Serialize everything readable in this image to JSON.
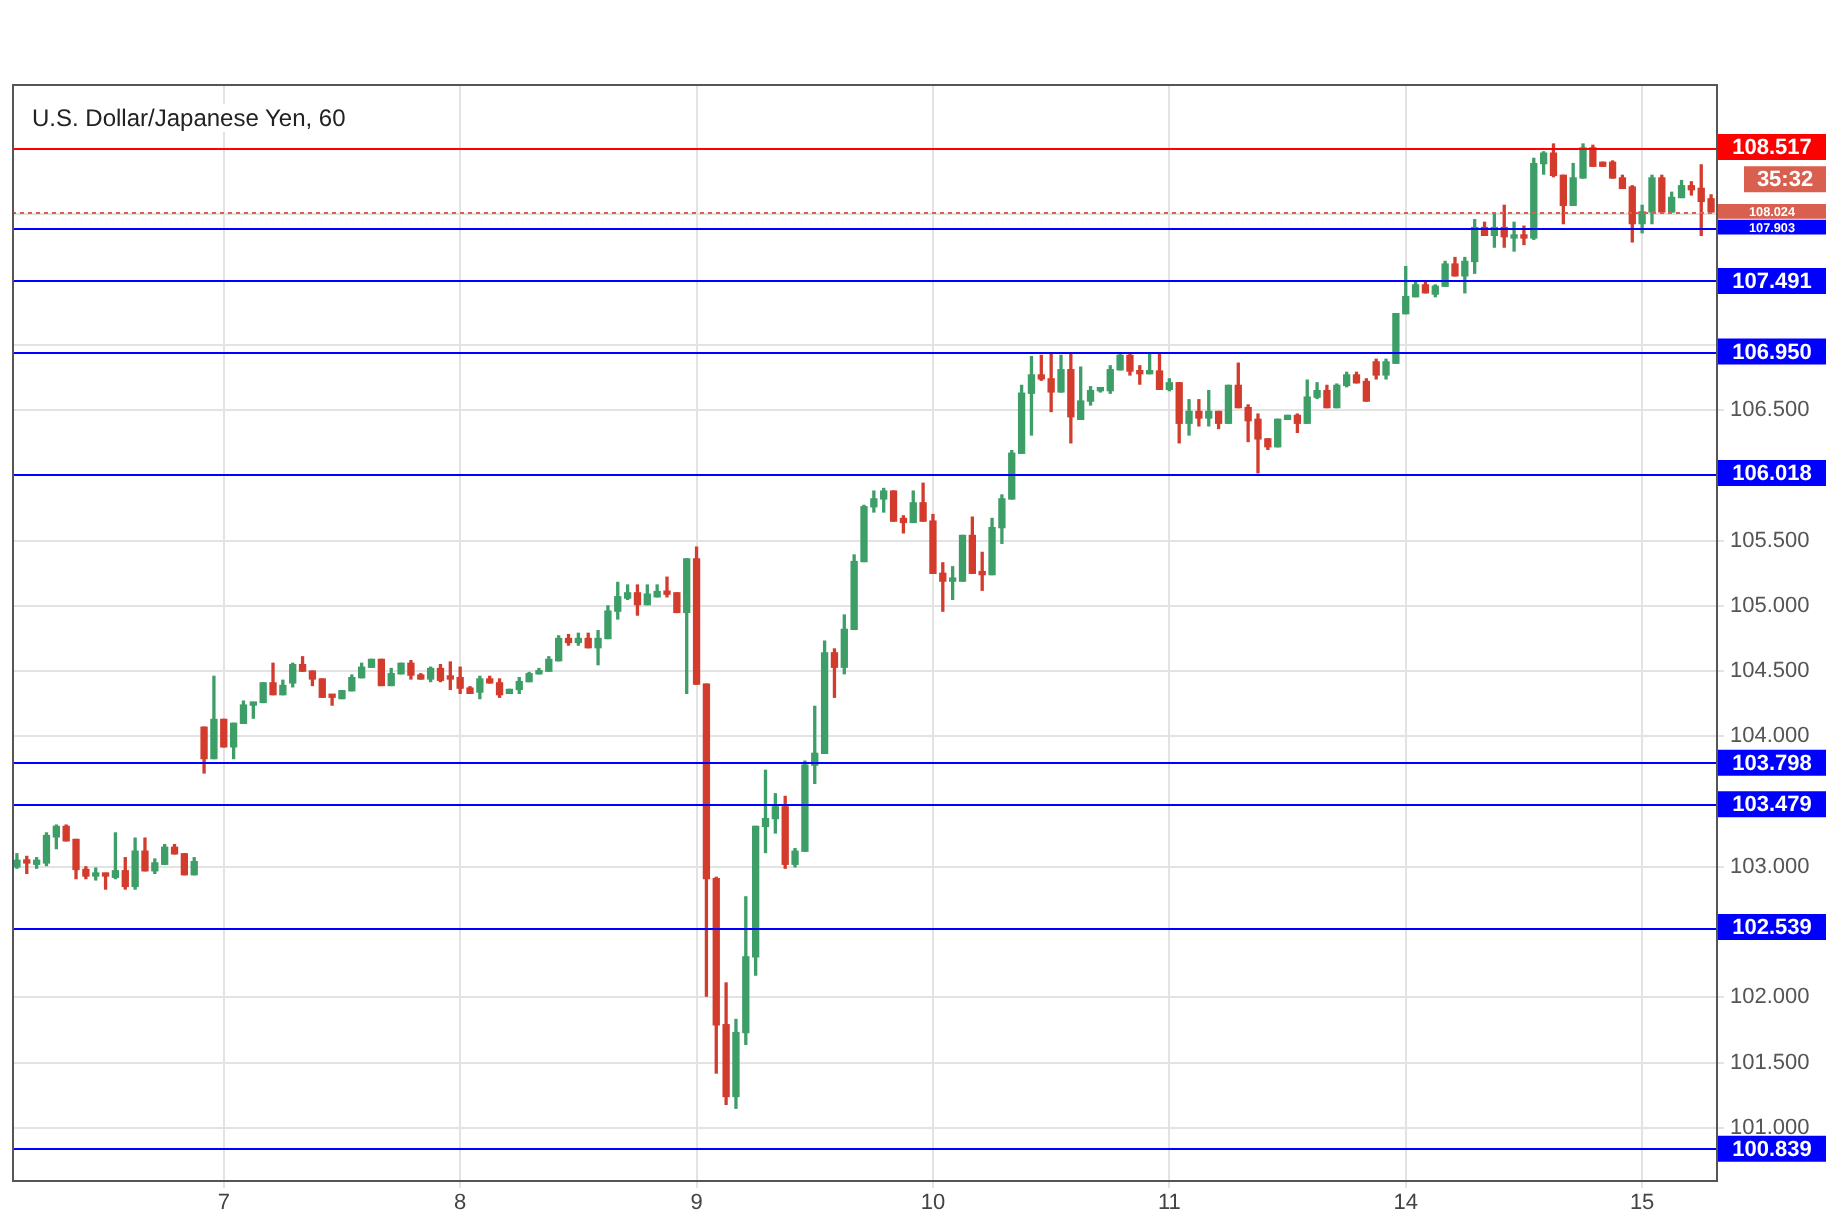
{
  "chart_data": {
    "type": "candlestick",
    "title": "U.S. Dollar/Japanese Yen, 60",
    "categories": [
      null,
      null,
      null,
      null,
      null,
      null,
      null,
      null,
      null,
      null,
      null,
      null,
      null,
      null,
      null,
      null,
      null,
      null,
      null,
      null,
      null,
      "7",
      null,
      null,
      null,
      null,
      null,
      null,
      null,
      null,
      null,
      null,
      null,
      null,
      null,
      null,
      null,
      null,
      null,
      null,
      null,
      null,
      null,
      null,
      null,
      "8",
      null,
      null,
      null,
      null,
      null,
      null,
      null,
      null,
      null,
      null,
      null,
      null,
      null,
      null,
      null,
      null,
      null,
      null,
      null,
      null,
      null,
      null,
      null,
      "9",
      null,
      null,
      null,
      null,
      null,
      null,
      null,
      null,
      null,
      null,
      null,
      null,
      null,
      null,
      null,
      null,
      null,
      null,
      null,
      null,
      null,
      null,
      null,
      "10",
      null,
      null,
      null,
      null,
      null,
      null,
      null,
      null,
      null,
      null,
      null,
      null,
      null,
      null,
      null,
      null,
      null,
      null,
      null,
      null,
      null,
      null,
      null,
      "11",
      null,
      null,
      null,
      null,
      null,
      null,
      null,
      null,
      null,
      null,
      null,
      null,
      null,
      null,
      null,
      null,
      null,
      null,
      null,
      null,
      null,
      null,
      null,
      "14",
      null,
      null,
      null,
      null,
      null,
      null,
      null,
      null,
      null,
      null,
      null,
      null,
      null,
      null,
      null,
      null,
      null,
      null,
      null,
      null,
      null,
      null,
      null,
      "15",
      null,
      null,
      null,
      null,
      null,
      null,
      null
    ],
    "ohlc": [
      [
        103.0,
        103.1,
        102.99,
        103.05
      ],
      [
        103.05,
        103.08,
        102.95,
        103.03
      ],
      [
        103.02,
        103.07,
        102.99,
        103.05
      ],
      [
        103.03,
        103.26,
        103.01,
        103.24
      ],
      [
        103.23,
        103.32,
        103.14,
        103.31
      ],
      [
        103.31,
        103.32,
        103.2,
        103.2
      ],
      [
        103.21,
        103.21,
        102.91,
        102.98
      ],
      [
        102.98,
        103.0,
        102.91,
        102.93
      ],
      [
        102.93,
        102.99,
        102.9,
        102.95
      ],
      [
        102.95,
        102.95,
        102.83,
        102.93
      ],
      [
        102.92,
        103.26,
        102.91,
        102.97
      ],
      [
        102.97,
        103.07,
        102.83,
        102.85
      ],
      [
        102.85,
        103.22,
        102.83,
        103.12
      ],
      [
        103.12,
        103.22,
        102.97,
        102.97
      ],
      [
        102.97,
        103.06,
        102.95,
        103.03
      ],
      [
        103.02,
        103.17,
        103.02,
        103.15
      ],
      [
        103.15,
        103.17,
        103.1,
        103.1
      ],
      [
        103.1,
        103.1,
        102.94,
        102.94
      ],
      [
        102.94,
        103.07,
        102.94,
        103.04
      ],
      [
        104.07,
        104.07,
        103.72,
        103.83
      ],
      [
        103.83,
        104.46,
        103.83,
        104.13
      ],
      [
        104.13,
        104.13,
        103.92,
        103.92
      ],
      [
        103.92,
        104.1,
        103.83,
        104.1
      ],
      [
        104.1,
        104.27,
        104.1,
        104.24
      ],
      [
        104.24,
        104.26,
        104.14,
        104.26
      ],
      [
        104.26,
        104.41,
        104.26,
        104.41
      ],
      [
        104.41,
        104.56,
        104.32,
        104.32
      ],
      [
        104.32,
        104.43,
        104.32,
        104.39
      ],
      [
        104.41,
        104.56,
        104.38,
        104.55
      ],
      [
        104.55,
        104.61,
        104.5,
        104.5
      ],
      [
        104.5,
        104.5,
        104.39,
        104.44
      ],
      [
        104.44,
        104.44,
        104.3,
        104.3
      ],
      [
        104.32,
        104.32,
        104.24,
        104.3
      ],
      [
        104.29,
        104.35,
        104.29,
        104.35
      ],
      [
        104.35,
        104.47,
        104.35,
        104.45
      ],
      [
        104.45,
        104.56,
        104.45,
        104.53
      ],
      [
        104.53,
        104.59,
        104.53,
        104.59
      ],
      [
        104.59,
        104.59,
        104.39,
        104.39
      ],
      [
        104.39,
        104.52,
        104.39,
        104.48
      ],
      [
        104.48,
        104.56,
        104.48,
        104.56
      ],
      [
        104.56,
        104.58,
        104.44,
        104.47
      ],
      [
        104.47,
        104.48,
        104.44,
        104.44
      ],
      [
        104.44,
        104.53,
        104.42,
        104.52
      ],
      [
        104.52,
        104.55,
        104.42,
        104.43
      ],
      [
        104.45,
        104.57,
        104.36,
        104.44
      ],
      [
        104.45,
        104.53,
        104.33,
        104.37
      ],
      [
        104.37,
        104.38,
        104.33,
        104.33
      ],
      [
        104.34,
        104.46,
        104.29,
        104.44
      ],
      [
        104.44,
        104.46,
        104.41,
        104.41
      ],
      [
        104.41,
        104.44,
        104.3,
        104.32
      ],
      [
        104.33,
        104.36,
        104.33,
        104.36
      ],
      [
        104.36,
        104.45,
        104.33,
        104.42
      ],
      [
        104.42,
        104.49,
        104.42,
        104.48
      ],
      [
        104.48,
        104.52,
        104.48,
        104.5
      ],
      [
        104.5,
        104.61,
        104.5,
        104.59
      ],
      [
        104.58,
        104.77,
        104.58,
        104.75
      ],
      [
        104.75,
        104.78,
        104.7,
        104.72
      ],
      [
        104.72,
        104.79,
        104.7,
        104.75
      ],
      [
        104.75,
        104.79,
        104.68,
        104.68
      ],
      [
        104.68,
        104.81,
        104.55,
        104.75
      ],
      [
        104.75,
        105.0,
        104.75,
        104.96
      ],
      [
        104.96,
        105.18,
        104.9,
        105.07
      ],
      [
        105.06,
        105.16,
        105.05,
        105.1
      ],
      [
        105.1,
        105.16,
        104.93,
        105.01
      ],
      [
        105.01,
        105.16,
        105.01,
        105.09
      ],
      [
        105.07,
        105.16,
        105.07,
        105.11
      ],
      [
        105.11,
        105.22,
        105.07,
        105.09
      ],
      [
        105.1,
        105.1,
        104.95,
        104.95
      ],
      [
        104.95,
        105.36,
        104.33,
        105.36
      ],
      [
        105.36,
        105.45,
        104.4,
        104.4
      ],
      [
        104.4,
        104.4,
        102.01,
        102.91
      ],
      [
        102.91,
        102.92,
        101.42,
        101.79
      ],
      [
        101.79,
        102.11,
        101.18,
        101.24
      ],
      [
        101.24,
        101.83,
        101.15,
        101.73
      ],
      [
        101.73,
        102.77,
        101.64,
        102.31
      ],
      [
        102.31,
        103.31,
        102.17,
        103.31
      ],
      [
        103.31,
        103.74,
        103.11,
        103.37
      ],
      [
        103.37,
        103.56,
        103.26,
        103.46
      ],
      [
        103.46,
        103.54,
        102.99,
        103.02
      ],
      [
        103.02,
        103.14,
        103.0,
        103.12
      ],
      [
        103.12,
        103.81,
        103.12,
        103.78
      ],
      [
        103.78,
        104.23,
        103.64,
        103.87
      ],
      [
        103.87,
        104.73,
        103.87,
        104.64
      ],
      [
        104.64,
        104.67,
        104.3,
        104.53
      ],
      [
        104.53,
        104.93,
        104.48,
        104.82
      ],
      [
        104.82,
        105.39,
        104.82,
        105.34
      ],
      [
        105.34,
        105.77,
        105.34,
        105.76
      ],
      [
        105.76,
        105.88,
        105.72,
        105.82
      ],
      [
        105.82,
        105.9,
        105.72,
        105.88
      ],
      [
        105.88,
        105.88,
        105.65,
        105.65
      ],
      [
        105.67,
        105.69,
        105.56,
        105.64
      ],
      [
        105.64,
        105.88,
        105.64,
        105.79
      ],
      [
        105.79,
        105.94,
        105.65,
        105.65
      ],
      [
        105.65,
        105.7,
        105.25,
        105.25
      ],
      [
        105.25,
        105.33,
        104.96,
        105.19
      ],
      [
        105.19,
        105.3,
        105.05,
        105.21
      ],
      [
        105.19,
        105.54,
        105.19,
        105.54
      ],
      [
        105.54,
        105.68,
        105.25,
        105.25
      ],
      [
        105.26,
        105.41,
        105.12,
        105.24
      ],
      [
        105.24,
        105.67,
        105.24,
        105.6
      ],
      [
        105.6,
        105.85,
        105.48,
        105.82
      ],
      [
        105.82,
        106.19,
        105.82,
        106.17
      ],
      [
        106.17,
        106.69,
        106.17,
        106.63
      ],
      [
        106.63,
        106.91,
        106.31,
        106.77
      ],
      [
        106.77,
        106.92,
        106.73,
        106.74
      ],
      [
        106.74,
        106.93,
        106.49,
        106.64
      ],
      [
        106.64,
        106.92,
        106.64,
        106.81
      ],
      [
        106.81,
        106.93,
        106.25,
        106.45
      ],
      [
        106.43,
        106.83,
        106.43,
        106.57
      ],
      [
        106.57,
        106.68,
        106.54,
        106.65
      ],
      [
        106.65,
        106.67,
        106.64,
        106.66
      ],
      [
        106.65,
        106.84,
        106.63,
        106.81
      ],
      [
        106.81,
        106.93,
        106.81,
        106.92
      ],
      [
        106.92,
        106.93,
        106.77,
        106.8
      ],
      [
        106.8,
        106.84,
        106.7,
        106.78
      ],
      [
        106.78,
        106.93,
        106.78,
        106.8
      ],
      [
        106.8,
        106.93,
        106.66,
        106.66
      ],
      [
        106.66,
        106.74,
        106.65,
        106.71
      ],
      [
        106.71,
        106.71,
        106.25,
        106.4
      ],
      [
        106.4,
        106.58,
        106.31,
        106.49
      ],
      [
        106.49,
        106.58,
        106.38,
        106.44
      ],
      [
        106.44,
        106.65,
        106.38,
        106.49
      ],
      [
        106.49,
        106.49,
        106.36,
        106.4
      ],
      [
        106.4,
        106.69,
        106.4,
        106.69
      ],
      [
        106.69,
        106.86,
        106.52,
        106.52
      ],
      [
        106.52,
        106.54,
        106.26,
        106.42
      ],
      [
        106.43,
        106.47,
        106.02,
        106.28
      ],
      [
        106.28,
        106.28,
        106.2,
        106.22
      ],
      [
        106.22,
        106.43,
        106.22,
        106.43
      ],
      [
        106.43,
        106.46,
        106.43,
        106.46
      ],
      [
        106.46,
        106.47,
        106.33,
        106.4
      ],
      [
        106.4,
        106.73,
        106.4,
        106.6
      ],
      [
        106.6,
        106.71,
        106.59,
        106.65
      ],
      [
        106.65,
        106.69,
        106.52,
        106.52
      ],
      [
        106.52,
        106.7,
        106.52,
        106.69
      ],
      [
        106.69,
        106.79,
        106.68,
        106.77
      ],
      [
        106.77,
        106.79,
        106.71,
        106.71
      ],
      [
        106.72,
        106.74,
        106.57,
        106.57
      ],
      [
        106.87,
        106.89,
        106.74,
        106.77
      ],
      [
        106.77,
        106.89,
        106.74,
        106.87
      ],
      [
        106.86,
        107.24,
        106.86,
        107.24
      ],
      [
        107.24,
        107.6,
        107.24,
        107.37
      ],
      [
        107.37,
        107.49,
        107.37,
        107.46
      ],
      [
        107.46,
        107.49,
        107.4,
        107.4
      ],
      [
        107.39,
        107.46,
        107.37,
        107.45
      ],
      [
        107.45,
        107.64,
        107.45,
        107.62
      ],
      [
        107.62,
        107.67,
        107.53,
        107.53
      ],
      [
        107.53,
        107.67,
        107.4,
        107.64
      ],
      [
        107.64,
        107.96,
        107.55,
        107.9
      ],
      [
        107.9,
        107.94,
        107.84,
        107.84
      ],
      [
        107.84,
        108.01,
        107.75,
        107.9
      ],
      [
        107.9,
        108.07,
        107.75,
        107.83
      ],
      [
        107.82,
        107.94,
        107.72,
        107.83
      ],
      [
        107.84,
        107.91,
        107.77,
        107.82
      ],
      [
        107.82,
        108.43,
        107.81,
        108.39
      ],
      [
        108.39,
        108.48,
        108.31,
        108.47
      ],
      [
        108.47,
        108.54,
        108.29,
        108.3
      ],
      [
        108.3,
        108.3,
        107.93,
        108.07
      ],
      [
        108.07,
        108.39,
        108.07,
        108.28
      ],
      [
        108.28,
        108.54,
        108.28,
        108.51
      ],
      [
        108.51,
        108.53,
        108.37,
        108.37
      ],
      [
        108.4,
        108.4,
        108.37,
        108.37
      ],
      [
        108.4,
        108.41,
        108.28,
        108.28
      ],
      [
        108.28,
        108.3,
        108.2,
        108.2
      ],
      [
        108.21,
        108.22,
        107.79,
        107.93
      ],
      [
        107.93,
        108.07,
        107.86,
        108.02
      ],
      [
        108.02,
        108.3,
        107.93,
        108.28
      ],
      [
        108.28,
        108.3,
        108.02,
        108.02
      ],
      [
        108.02,
        108.17,
        108.02,
        108.13
      ],
      [
        108.13,
        108.26,
        108.13,
        108.22
      ],
      [
        108.22,
        108.25,
        108.15,
        108.19
      ],
      [
        108.2,
        108.38,
        107.84,
        108.1
      ],
      [
        108.12,
        108.15,
        108.02,
        108.02
      ]
    ],
    "ylim": [
      100.6,
      109.0
    ],
    "yticks": [
      {
        "value": 101,
        "label": "101.000"
      },
      {
        "value": 101.5,
        "label": "101.500"
      },
      {
        "value": 102,
        "label": "102.000"
      },
      {
        "value": 103,
        "label": "103.000"
      },
      {
        "value": 104,
        "label": "104.000"
      },
      {
        "value": 104.5,
        "label": "104.500"
      },
      {
        "value": 105,
        "label": "105.000"
      },
      {
        "value": 105.5,
        "label": "105.500"
      },
      {
        "value": 106.5,
        "label": "106.500"
      },
      {
        "value": 107,
        "label": null
      },
      {
        "value": 108,
        "label": null
      },
      {
        "value": 108.5,
        "label": null
      }
    ],
    "grid": true,
    "legend": false,
    "ref_lines": [
      {
        "axis": "y",
        "value": 108.517,
        "label": "108.517",
        "color": "#ff0000",
        "line_style": "solid"
      },
      {
        "axis": "y",
        "value": 108.024,
        "label": "108.024",
        "color": "#d9604f",
        "line_style": "dotted"
      },
      {
        "axis": "y",
        "value": 107.903,
        "label": "107.903",
        "color": "#0000ff",
        "line_style": "solid"
      },
      {
        "axis": "y",
        "value": 107.491,
        "label": "107.491",
        "color": "#0000ff",
        "line_style": "solid"
      },
      {
        "axis": "y",
        "value": 106.95,
        "label": "106.950",
        "color": "#0000ff",
        "line_style": "solid"
      },
      {
        "axis": "y",
        "value": 106.018,
        "label": "106.018",
        "color": "#0000ff",
        "line_style": "solid"
      },
      {
        "axis": "y",
        "value": 103.798,
        "label": "103.798",
        "color": "#0000ff",
        "line_style": "solid"
      },
      {
        "axis": "y",
        "value": 103.479,
        "label": "103.479",
        "color": "#0000ff",
        "line_style": "solid"
      },
      {
        "axis": "y",
        "value": 102.539,
        "label": "102.539",
        "color": "#0000ff",
        "line_style": "solid"
      },
      {
        "axis": "y",
        "value": 100.839,
        "label": "100.839",
        "color": "#0000ff",
        "line_style": "solid"
      }
    ],
    "annotations": [
      "35:32"
    ]
  }
}
